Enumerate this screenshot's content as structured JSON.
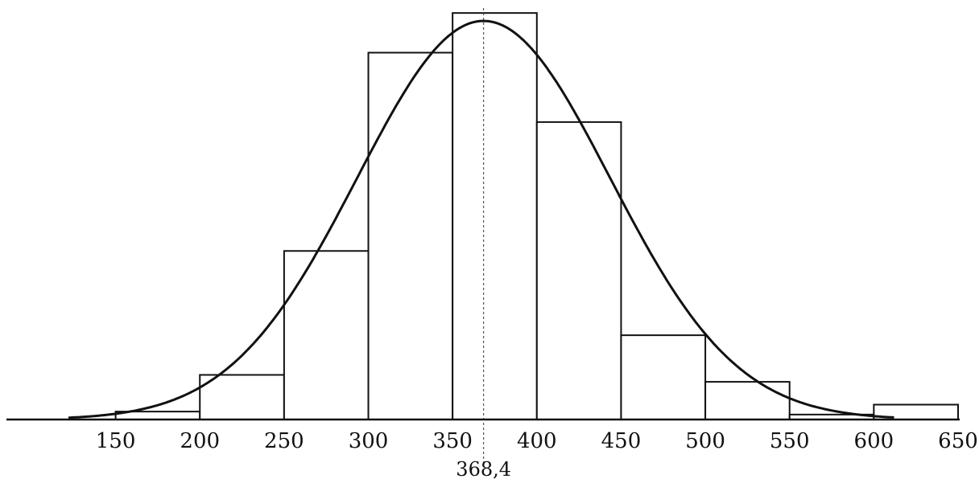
{
  "chart_data": {
    "type": "bar",
    "bin_edges": [
      150,
      200,
      250,
      300,
      350,
      400,
      450,
      500,
      550,
      600,
      650
    ],
    "values": [
      0.8,
      4.5,
      17,
      37,
      41,
      30,
      8.5,
      3.8,
      0.5,
      1.5
    ],
    "xticks": [
      150,
      200,
      250,
      300,
      350,
      400,
      450,
      500,
      550,
      600,
      650
    ],
    "xlim": [
      122,
      650
    ],
    "ylim": [
      0,
      41.5
    ],
    "overlay_curve": {
      "type": "normal",
      "mean": 368.4,
      "sd": 75,
      "peak": 40.2,
      "x_range": [
        122,
        612
      ]
    },
    "mean_marker": {
      "value": 368.4,
      "label": "368,4"
    },
    "title": "",
    "xlabel": "",
    "ylabel": ""
  }
}
